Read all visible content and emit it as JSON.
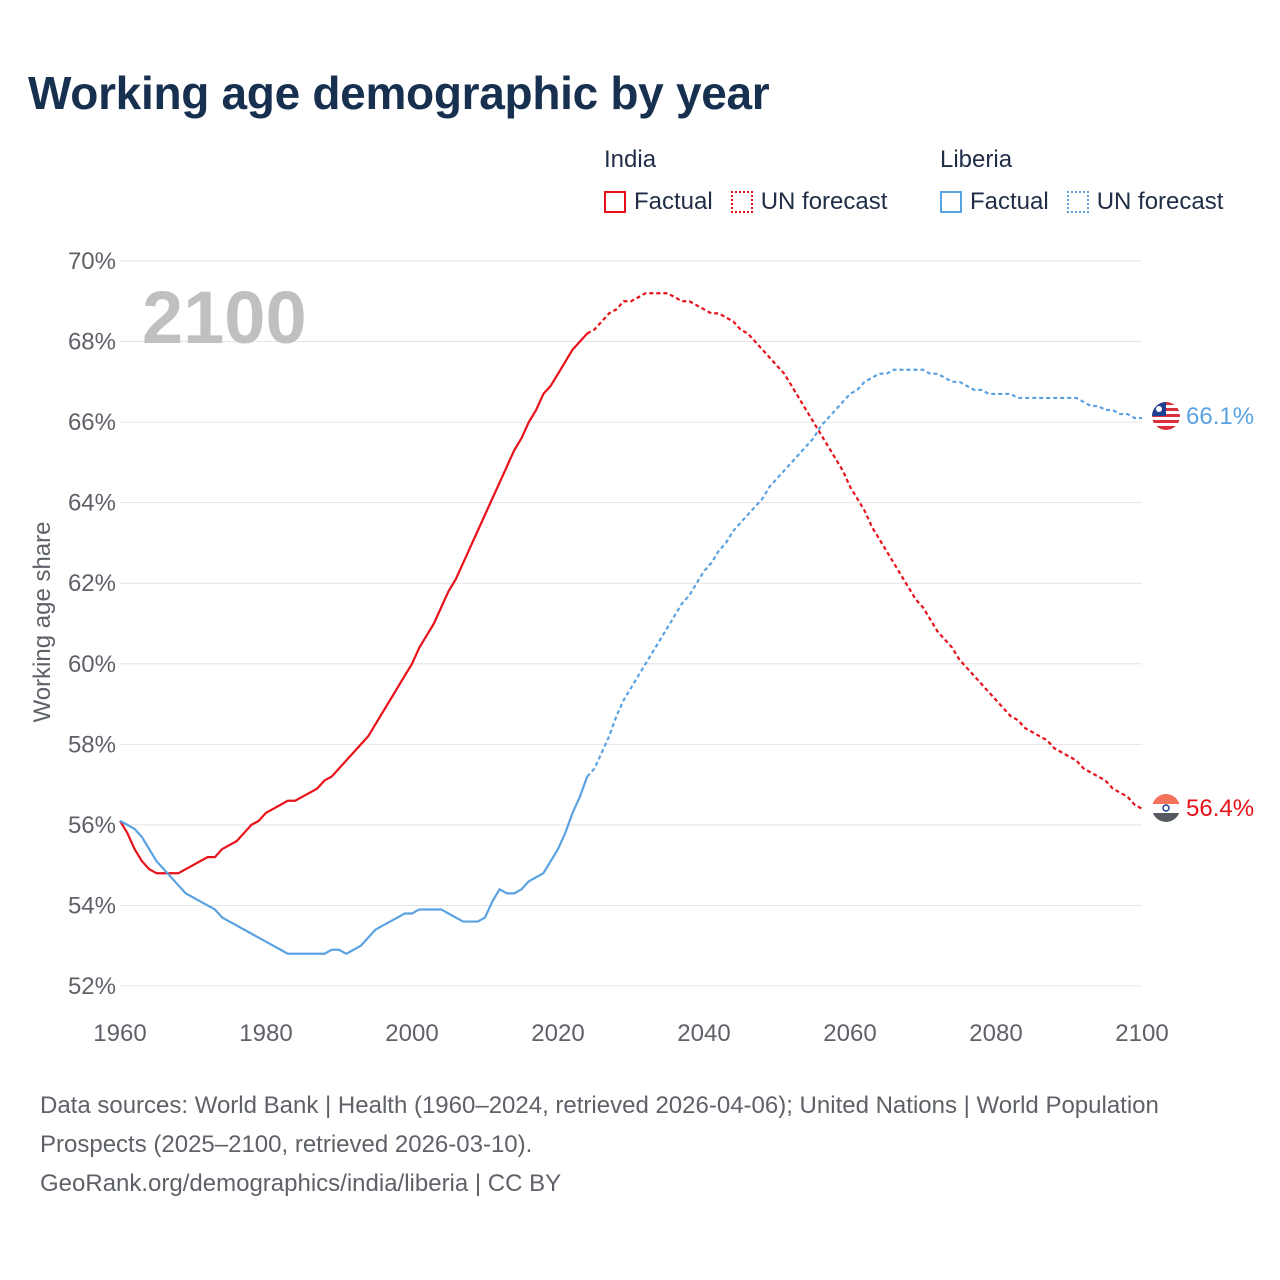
{
  "title": "Working age demographic by year",
  "legend": {
    "groups": [
      {
        "name": "India",
        "color": "#e8111a",
        "items": [
          {
            "label": "Factual",
            "style": "solid"
          },
          {
            "label": "UN forecast",
            "style": "dotted"
          }
        ]
      },
      {
        "name": "Liberia",
        "color": "#5ba2e2",
        "items": [
          {
            "label": "Factual",
            "style": "solid"
          },
          {
            "label": "UN forecast",
            "style": "dotted"
          }
        ]
      }
    ]
  },
  "year_watermark": "2100",
  "footer": {
    "line1": "Data sources: World Bank | Health (1960–2024, retrieved 2026-04-06); United Nations | World Population Prospects (2025–2100, retrieved 2026-03-10).",
    "line2": "GeoRank.org/demographics/india/liberia | CC BY"
  },
  "chart_data": {
    "type": "line",
    "title": "Working age demographic by year",
    "xlabel": "",
    "ylabel": "Working age share",
    "xlim": [
      1960,
      2100
    ],
    "ylim": [
      52,
      70
    ],
    "x_ticks": [
      1960,
      1980,
      2000,
      2020,
      2040,
      2060,
      2080,
      2100
    ],
    "x_tick_labels": [
      "1960",
      "1980",
      "2000",
      "2020",
      "2040",
      "2060",
      "2080",
      "2100"
    ],
    "y_ticks": [
      52,
      54,
      56,
      58,
      60,
      62,
      64,
      66,
      68,
      70
    ],
    "y_tick_labels": [
      "52%",
      "54%",
      "56%",
      "58%",
      "60%",
      "62%",
      "64%",
      "66%",
      "68%",
      "70%"
    ],
    "grid": true,
    "factual_end_year": 2024,
    "series": [
      {
        "name": "India",
        "color": "#e8111a",
        "end_label": "56.4%",
        "flag": "india",
        "points": [
          [
            1960,
            56.1
          ],
          [
            1961,
            55.8
          ],
          [
            1962,
            55.4
          ],
          [
            1963,
            55.1
          ],
          [
            1964,
            54.9
          ],
          [
            1965,
            54.8
          ],
          [
            1966,
            54.8
          ],
          [
            1967,
            54.8
          ],
          [
            1968,
            54.8
          ],
          [
            1969,
            54.9
          ],
          [
            1970,
            55.0
          ],
          [
            1971,
            55.1
          ],
          [
            1972,
            55.2
          ],
          [
            1973,
            55.2
          ],
          [
            1974,
            55.4
          ],
          [
            1975,
            55.5
          ],
          [
            1976,
            55.6
          ],
          [
            1977,
            55.8
          ],
          [
            1978,
            56.0
          ],
          [
            1979,
            56.1
          ],
          [
            1980,
            56.3
          ],
          [
            1981,
            56.4
          ],
          [
            1982,
            56.5
          ],
          [
            1983,
            56.6
          ],
          [
            1984,
            56.6
          ],
          [
            1985,
            56.7
          ],
          [
            1986,
            56.8
          ],
          [
            1987,
            56.9
          ],
          [
            1988,
            57.1
          ],
          [
            1989,
            57.2
          ],
          [
            1990,
            57.4
          ],
          [
            1991,
            57.6
          ],
          [
            1992,
            57.8
          ],
          [
            1993,
            58.0
          ],
          [
            1994,
            58.2
          ],
          [
            1995,
            58.5
          ],
          [
            1996,
            58.8
          ],
          [
            1997,
            59.1
          ],
          [
            1998,
            59.4
          ],
          [
            1999,
            59.7
          ],
          [
            2000,
            60.0
          ],
          [
            2001,
            60.4
          ],
          [
            2002,
            60.7
          ],
          [
            2003,
            61.0
          ],
          [
            2004,
            61.4
          ],
          [
            2005,
            61.8
          ],
          [
            2006,
            62.1
          ],
          [
            2007,
            62.5
          ],
          [
            2008,
            62.9
          ],
          [
            2009,
            63.3
          ],
          [
            2010,
            63.7
          ],
          [
            2011,
            64.1
          ],
          [
            2012,
            64.5
          ],
          [
            2013,
            64.9
          ],
          [
            2014,
            65.3
          ],
          [
            2015,
            65.6
          ],
          [
            2016,
            66.0
          ],
          [
            2017,
            66.3
          ],
          [
            2018,
            66.7
          ],
          [
            2019,
            66.9
          ],
          [
            2020,
            67.2
          ],
          [
            2021,
            67.5
          ],
          [
            2022,
            67.8
          ],
          [
            2023,
            68.0
          ],
          [
            2024,
            68.2
          ],
          [
            2025,
            68.3
          ],
          [
            2026,
            68.5
          ],
          [
            2027,
            68.7
          ],
          [
            2028,
            68.8
          ],
          [
            2029,
            69.0
          ],
          [
            2030,
            69.0
          ],
          [
            2031,
            69.1
          ],
          [
            2032,
            69.2
          ],
          [
            2033,
            69.2
          ],
          [
            2034,
            69.2
          ],
          [
            2035,
            69.2
          ],
          [
            2036,
            69.1
          ],
          [
            2037,
            69.0
          ],
          [
            2038,
            69.0
          ],
          [
            2039,
            68.9
          ],
          [
            2040,
            68.8
          ],
          [
            2041,
            68.7
          ],
          [
            2042,
            68.7
          ],
          [
            2043,
            68.6
          ],
          [
            2044,
            68.5
          ],
          [
            2045,
            68.3
          ],
          [
            2046,
            68.2
          ],
          [
            2047,
            68.0
          ],
          [
            2048,
            67.8
          ],
          [
            2049,
            67.6
          ],
          [
            2050,
            67.4
          ],
          [
            2051,
            67.2
          ],
          [
            2052,
            66.9
          ],
          [
            2053,
            66.6
          ],
          [
            2054,
            66.3
          ],
          [
            2055,
            66.0
          ],
          [
            2056,
            65.7
          ],
          [
            2057,
            65.4
          ],
          [
            2058,
            65.1
          ],
          [
            2059,
            64.8
          ],
          [
            2060,
            64.4
          ],
          [
            2061,
            64.1
          ],
          [
            2062,
            63.8
          ],
          [
            2063,
            63.4
          ],
          [
            2064,
            63.1
          ],
          [
            2065,
            62.8
          ],
          [
            2066,
            62.5
          ],
          [
            2067,
            62.2
          ],
          [
            2068,
            61.9
          ],
          [
            2069,
            61.6
          ],
          [
            2070,
            61.4
          ],
          [
            2071,
            61.1
          ],
          [
            2072,
            60.8
          ],
          [
            2073,
            60.6
          ],
          [
            2074,
            60.4
          ],
          [
            2075,
            60.1
          ],
          [
            2076,
            59.9
          ],
          [
            2077,
            59.7
          ],
          [
            2078,
            59.5
          ],
          [
            2079,
            59.3
          ],
          [
            2080,
            59.1
          ],
          [
            2081,
            58.9
          ],
          [
            2082,
            58.7
          ],
          [
            2083,
            58.6
          ],
          [
            2084,
            58.4
          ],
          [
            2085,
            58.3
          ],
          [
            2086,
            58.2
          ],
          [
            2087,
            58.1
          ],
          [
            2088,
            57.9
          ],
          [
            2089,
            57.8
          ],
          [
            2090,
            57.7
          ],
          [
            2091,
            57.6
          ],
          [
            2092,
            57.4
          ],
          [
            2093,
            57.3
          ],
          [
            2094,
            57.2
          ],
          [
            2095,
            57.1
          ],
          [
            2096,
            56.9
          ],
          [
            2097,
            56.8
          ],
          [
            2098,
            56.7
          ],
          [
            2099,
            56.5
          ],
          [
            2100,
            56.4
          ]
        ]
      },
      {
        "name": "Liberia",
        "color": "#5ba2e2",
        "end_label": "66.1%",
        "flag": "liberia",
        "points": [
          [
            1960,
            56.1
          ],
          [
            1961,
            56.0
          ],
          [
            1962,
            55.9
          ],
          [
            1963,
            55.7
          ],
          [
            1964,
            55.4
          ],
          [
            1965,
            55.1
          ],
          [
            1966,
            54.9
          ],
          [
            1967,
            54.7
          ],
          [
            1968,
            54.5
          ],
          [
            1969,
            54.3
          ],
          [
            1970,
            54.2
          ],
          [
            1971,
            54.1
          ],
          [
            1972,
            54.0
          ],
          [
            1973,
            53.9
          ],
          [
            1974,
            53.7
          ],
          [
            1975,
            53.6
          ],
          [
            1976,
            53.5
          ],
          [
            1977,
            53.4
          ],
          [
            1978,
            53.3
          ],
          [
            1979,
            53.2
          ],
          [
            1980,
            53.1
          ],
          [
            1981,
            53.0
          ],
          [
            1982,
            52.9
          ],
          [
            1983,
            52.8
          ],
          [
            1984,
            52.8
          ],
          [
            1985,
            52.8
          ],
          [
            1986,
            52.8
          ],
          [
            1987,
            52.8
          ],
          [
            1988,
            52.8
          ],
          [
            1989,
            52.9
          ],
          [
            1990,
            52.9
          ],
          [
            1991,
            52.8
          ],
          [
            1992,
            52.9
          ],
          [
            1993,
            53.0
          ],
          [
            1994,
            53.2
          ],
          [
            1995,
            53.4
          ],
          [
            1996,
            53.5
          ],
          [
            1997,
            53.6
          ],
          [
            1998,
            53.7
          ],
          [
            1999,
            53.8
          ],
          [
            2000,
            53.8
          ],
          [
            2001,
            53.9
          ],
          [
            2002,
            53.9
          ],
          [
            2003,
            53.9
          ],
          [
            2004,
            53.9
          ],
          [
            2005,
            53.8
          ],
          [
            2006,
            53.7
          ],
          [
            2007,
            53.6
          ],
          [
            2008,
            53.6
          ],
          [
            2009,
            53.6
          ],
          [
            2010,
            53.7
          ],
          [
            2011,
            54.1
          ],
          [
            2012,
            54.4
          ],
          [
            2013,
            54.3
          ],
          [
            2014,
            54.3
          ],
          [
            2015,
            54.4
          ],
          [
            2016,
            54.6
          ],
          [
            2017,
            54.7
          ],
          [
            2018,
            54.8
          ],
          [
            2019,
            55.1
          ],
          [
            2020,
            55.4
          ],
          [
            2021,
            55.8
          ],
          [
            2022,
            56.3
          ],
          [
            2023,
            56.7
          ],
          [
            2024,
            57.2
          ],
          [
            2025,
            57.4
          ],
          [
            2026,
            57.8
          ],
          [
            2027,
            58.2
          ],
          [
            2028,
            58.7
          ],
          [
            2029,
            59.1
          ],
          [
            2030,
            59.4
          ],
          [
            2031,
            59.7
          ],
          [
            2032,
            60.0
          ],
          [
            2033,
            60.3
          ],
          [
            2034,
            60.6
          ],
          [
            2035,
            60.9
          ],
          [
            2036,
            61.2
          ],
          [
            2037,
            61.5
          ],
          [
            2038,
            61.7
          ],
          [
            2039,
            62.0
          ],
          [
            2040,
            62.3
          ],
          [
            2041,
            62.5
          ],
          [
            2042,
            62.8
          ],
          [
            2043,
            63.0
          ],
          [
            2044,
            63.3
          ],
          [
            2045,
            63.5
          ],
          [
            2046,
            63.7
          ],
          [
            2047,
            63.9
          ],
          [
            2048,
            64.1
          ],
          [
            2049,
            64.4
          ],
          [
            2050,
            64.6
          ],
          [
            2051,
            64.8
          ],
          [
            2052,
            65.0
          ],
          [
            2053,
            65.2
          ],
          [
            2054,
            65.4
          ],
          [
            2055,
            65.6
          ],
          [
            2056,
            65.9
          ],
          [
            2057,
            66.1
          ],
          [
            2058,
            66.3
          ],
          [
            2059,
            66.5
          ],
          [
            2060,
            66.7
          ],
          [
            2061,
            66.8
          ],
          [
            2062,
            67.0
          ],
          [
            2063,
            67.1
          ],
          [
            2064,
            67.2
          ],
          [
            2065,
            67.2
          ],
          [
            2066,
            67.3
          ],
          [
            2067,
            67.3
          ],
          [
            2068,
            67.3
          ],
          [
            2069,
            67.3
          ],
          [
            2070,
            67.3
          ],
          [
            2071,
            67.2
          ],
          [
            2072,
            67.2
          ],
          [
            2073,
            67.1
          ],
          [
            2074,
            67.0
          ],
          [
            2075,
            67.0
          ],
          [
            2076,
            66.9
          ],
          [
            2077,
            66.8
          ],
          [
            2078,
            66.8
          ],
          [
            2079,
            66.7
          ],
          [
            2080,
            66.7
          ],
          [
            2081,
            66.7
          ],
          [
            2082,
            66.7
          ],
          [
            2083,
            66.6
          ],
          [
            2084,
            66.6
          ],
          [
            2085,
            66.6
          ],
          [
            2086,
            66.6
          ],
          [
            2087,
            66.6
          ],
          [
            2088,
            66.6
          ],
          [
            2089,
            66.6
          ],
          [
            2090,
            66.6
          ],
          [
            2091,
            66.6
          ],
          [
            2092,
            66.5
          ],
          [
            2093,
            66.4
          ],
          [
            2094,
            66.4
          ],
          [
            2095,
            66.3
          ],
          [
            2096,
            66.3
          ],
          [
            2097,
            66.2
          ],
          [
            2098,
            66.2
          ],
          [
            2099,
            66.1
          ],
          [
            2100,
            66.1
          ]
        ]
      }
    ]
  }
}
